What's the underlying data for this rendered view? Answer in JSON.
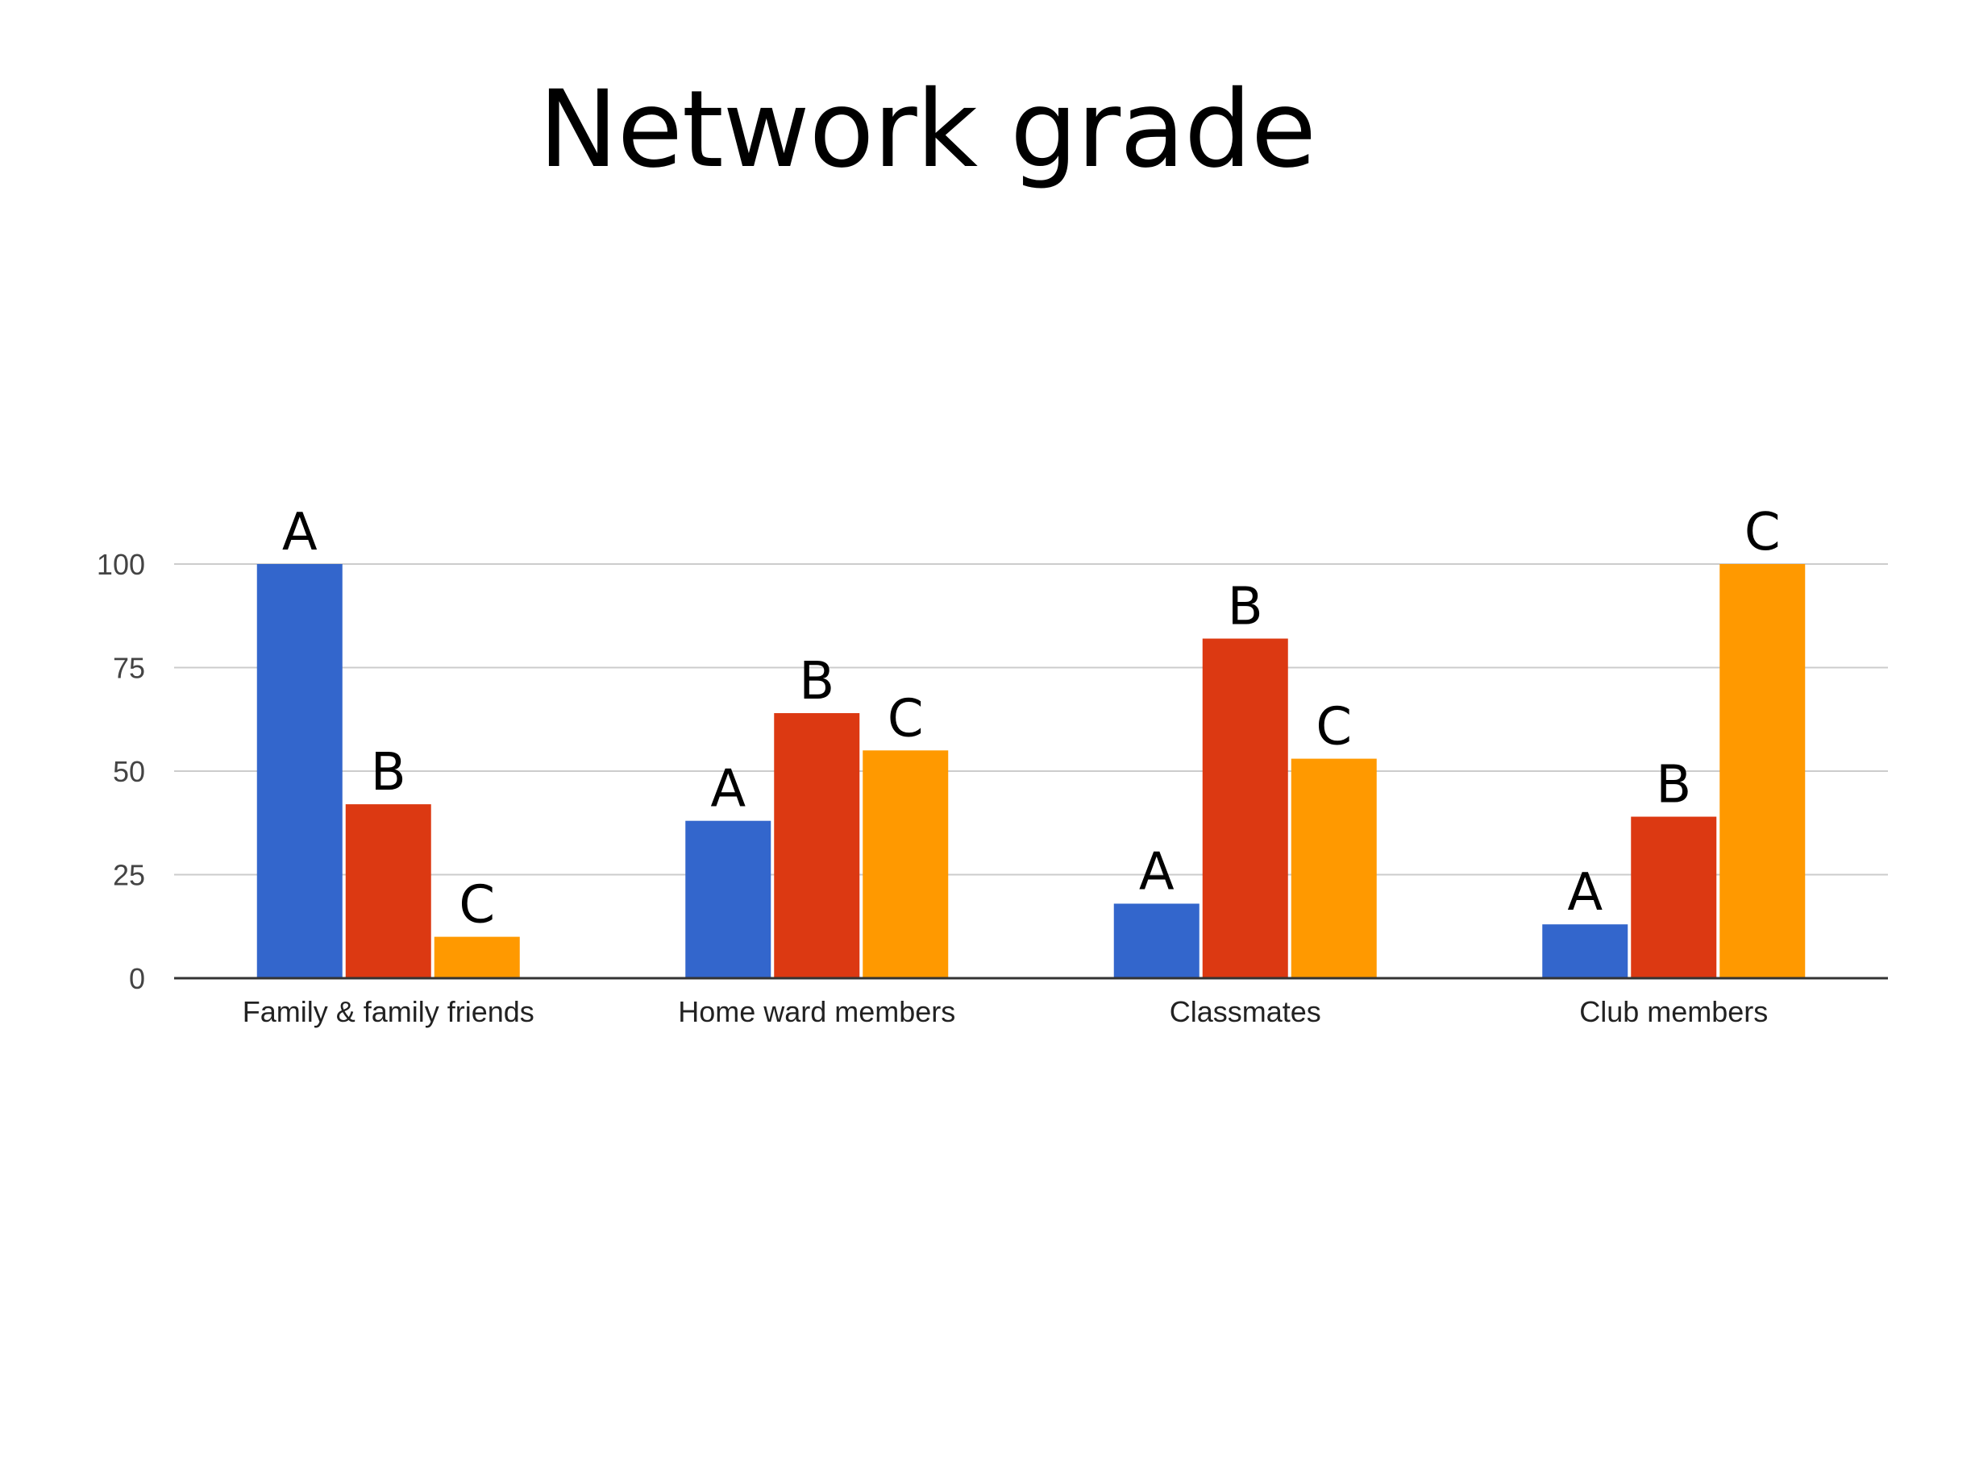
{
  "chart_data": {
    "type": "bar",
    "title": "Network grade",
    "xlabel": "",
    "ylabel": "",
    "categories": [
      "Family & family friends",
      "Home ward members",
      "Classmates",
      "Club members"
    ],
    "series": [
      {
        "color": "#3366cc",
        "values": [
          100,
          38,
          18,
          13
        ],
        "labels": [
          "A",
          "A",
          "A",
          "A"
        ]
      },
      {
        "color": "#dc3912",
        "values": [
          42,
          64,
          82,
          39
        ],
        "labels": [
          "B",
          "B",
          "B",
          "B"
        ]
      },
      {
        "color": "#ff9900",
        "values": [
          10,
          55,
          53,
          100
        ],
        "labels": [
          "C",
          "C",
          "C",
          "C"
        ]
      }
    ],
    "ylim": [
      0,
      100
    ],
    "yticks": [
      "0",
      "25",
      "50",
      "75",
      "100"
    ],
    "ytick_values": [
      0,
      25,
      50,
      75,
      100
    ],
    "grid": true,
    "legend": "none"
  }
}
